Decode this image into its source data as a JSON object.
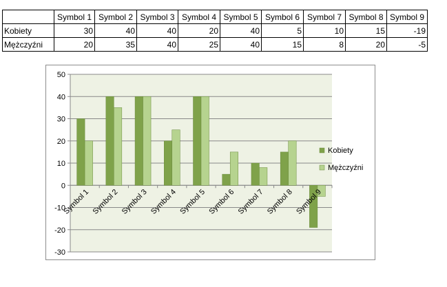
{
  "table": {
    "header": [
      "",
      "Symbol 1",
      "Symbol 2",
      "Symbol 3",
      "Symbol 4",
      "Symbol 5",
      "Symbol 6",
      "Symbol 7",
      "Symbol 8",
      "Symbol 9"
    ],
    "rows": [
      {
        "label": "Kobiety",
        "values": [
          "30",
          "40",
          "40",
          "20",
          "40",
          "5",
          "10",
          "15",
          "-19"
        ]
      },
      {
        "label": "Mężczyźni",
        "values": [
          "20",
          "35",
          "40",
          "25",
          "40",
          "15",
          "8",
          "20",
          "-5"
        ]
      }
    ]
  },
  "chart_data": {
    "type": "bar",
    "categories": [
      "Symbol 1",
      "Symbol 2",
      "Symbol 3",
      "Symbol 4",
      "Symbol 5",
      "Symbol 6",
      "Symbol 7",
      "Symbol 8",
      "Symbol 9"
    ],
    "series": [
      {
        "name": "Kobiety",
        "values": [
          30,
          40,
          40,
          20,
          40,
          5,
          10,
          15,
          -19
        ],
        "color": "#7fa24a"
      },
      {
        "name": "Mężczyźni",
        "values": [
          20,
          35,
          40,
          25,
          40,
          15,
          8,
          20,
          -5
        ],
        "color": "#b6d38f"
      }
    ],
    "ylim": [
      -30,
      50
    ],
    "yticks": [
      "50",
      "40",
      "30",
      "20",
      "10",
      "0",
      "-10",
      "-20",
      "-30"
    ],
    "grid": true,
    "legend_position": "right",
    "plot_background": "#eef2e4",
    "gridline_color": "#888888"
  }
}
